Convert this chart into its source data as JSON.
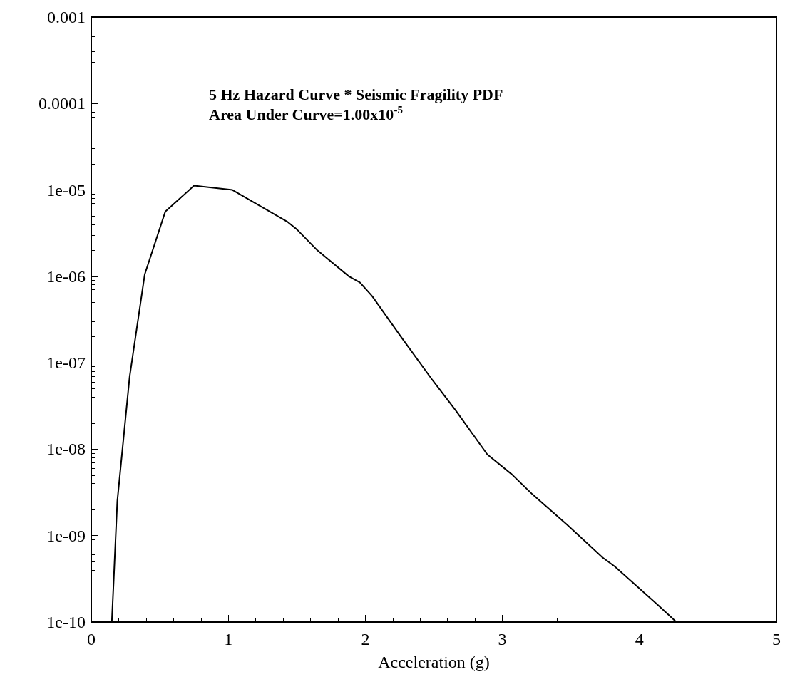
{
  "chart_data": {
    "type": "line",
    "annotations": [
      "5 Hz Hazard Curve * Seismic Fragility PDF",
      "Area Under Curve=1.00x10$^{-5}$"
    ],
    "xlabel": "Acceleration (g)",
    "x": [
      0.15,
      0.19,
      0.28,
      0.39,
      0.54,
      0.75,
      1.03,
      1.43,
      1.5,
      1.65,
      1.88,
      1.96,
      2.05,
      2.26,
      2.49,
      2.66,
      2.89,
      3.07,
      3.22,
      3.47,
      3.73,
      3.82,
      4.13,
      4.27
    ],
    "series": [
      {
        "color": "#000000",
        "values": [
          1e-10,
          2.5e-09,
          6.9e-08,
          1.05e-06,
          5.6e-06,
          1.12e-05,
          1e-05,
          4.3e-06,
          3.5e-06,
          2e-06,
          1e-06,
          8.5e-07,
          5.9e-07,
          2e-07,
          6.3e-08,
          2.8e-08,
          8.7e-09,
          5.1e-09,
          3e-09,
          1.35e-09,
          5.6e-10,
          4.4e-10,
          1.6e-10,
          1e-10
        ]
      }
    ],
    "xlim": [
      0,
      5
    ],
    "xticks": [
      0,
      1,
      2,
      3,
      4,
      5
    ],
    "ylim": [
      1e-10,
      0.001
    ],
    "yticks": [
      0.001,
      0.0001,
      {
        "value": 1e-05,
        "label": "1e-05"
      },
      {
        "value": 1e-06,
        "label": "1e-06"
      },
      {
        "value": 1e-07,
        "label": "1e-07"
      },
      {
        "value": 1e-08,
        "label": "1e-08"
      },
      {
        "value": 1e-09,
        "label": "1e-09"
      },
      {
        "value": 1e-10,
        "label": "1e-10"
      }
    ],
    "log": "y",
    "marker": "none",
    "line_style": "solid"
  }
}
